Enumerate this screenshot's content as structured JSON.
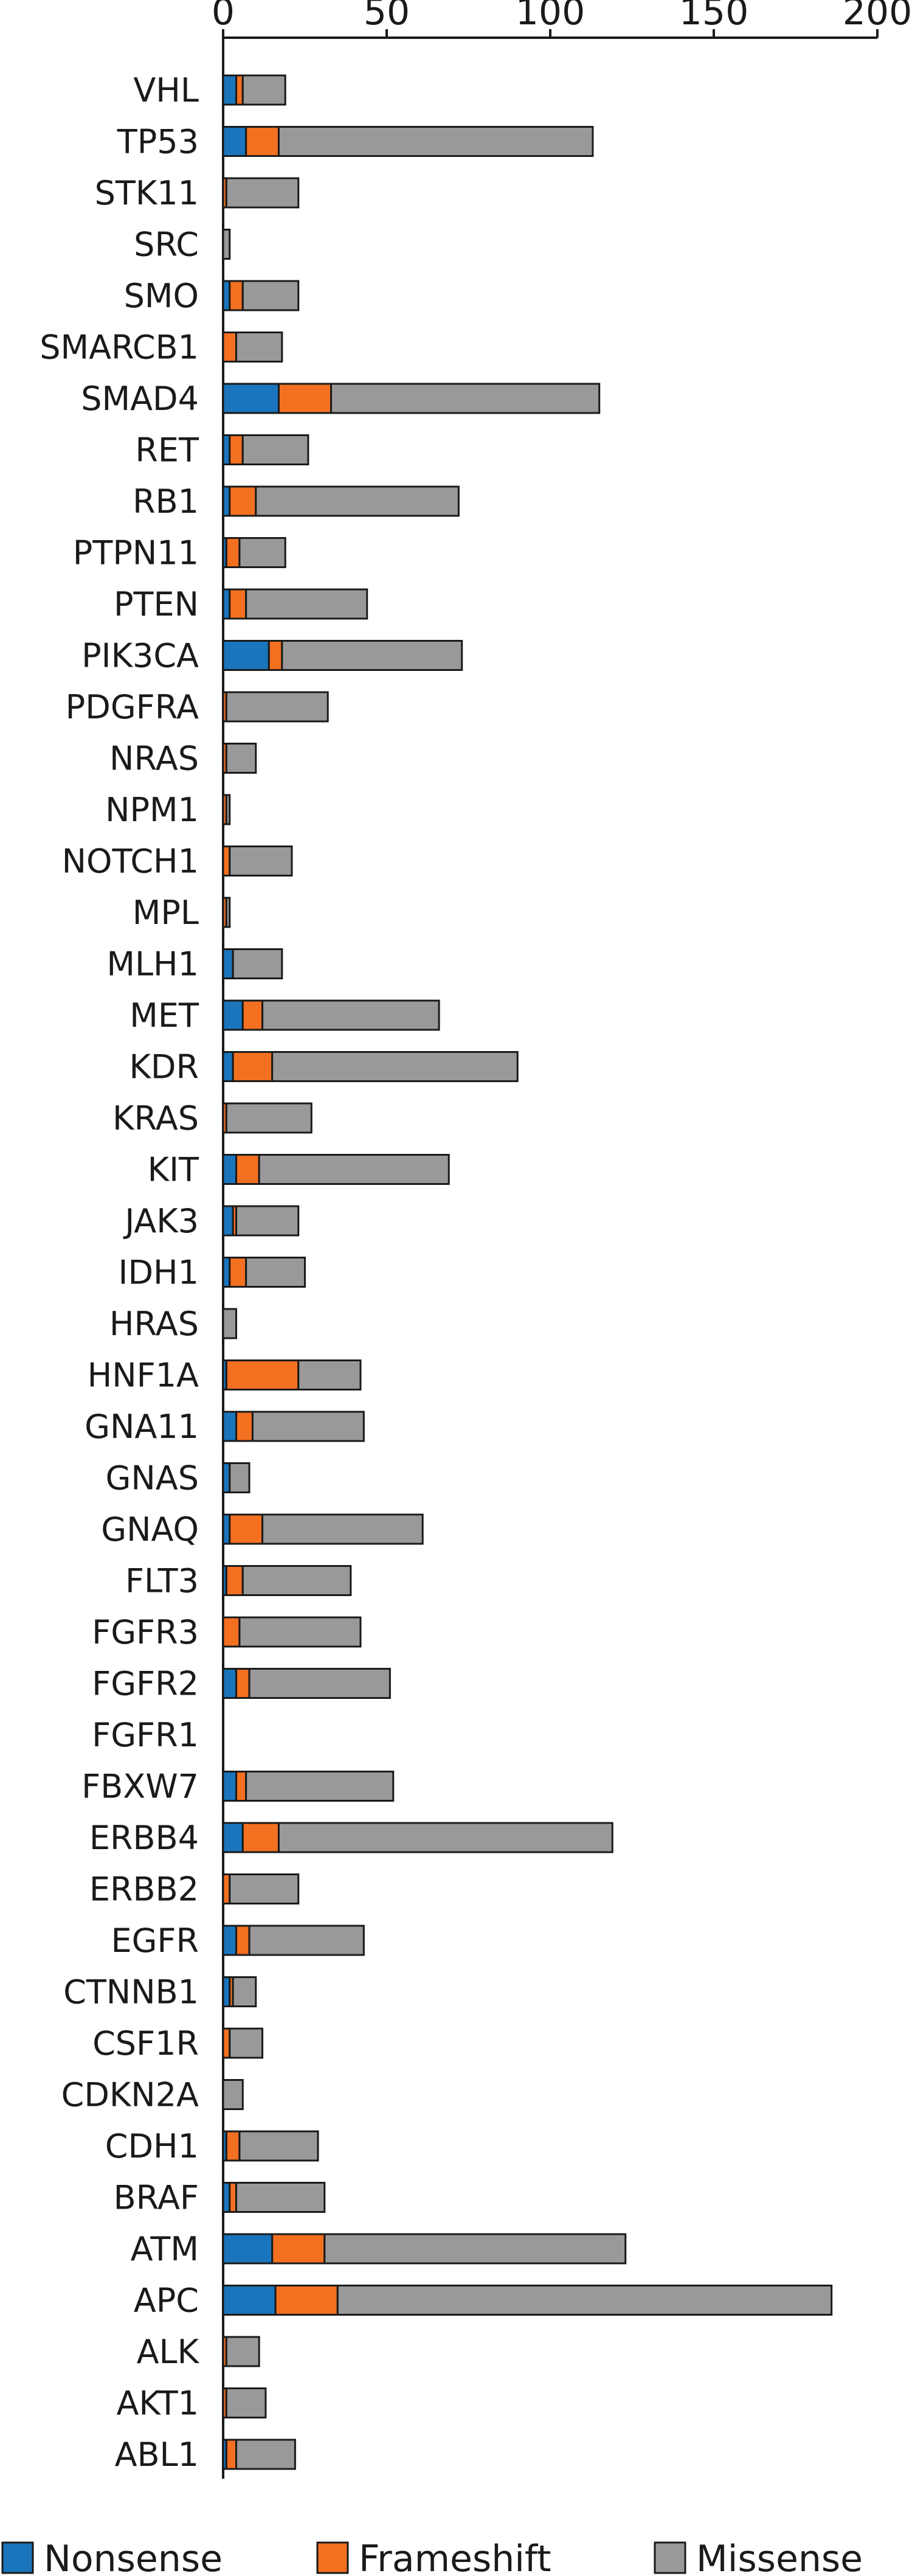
{
  "chart_data": {
    "type": "bar",
    "orientation": "horizontal",
    "stacked": true,
    "title": "",
    "xlabel": "",
    "ylabel": "",
    "xlim": [
      0,
      200
    ],
    "xticks": [
      0,
      50,
      100,
      150,
      200
    ],
    "x_axis_position": "top",
    "grid": false,
    "legend": "bottom",
    "categories": [
      "VHL",
      "TP53",
      "STK11",
      "SRC",
      "SMO",
      "SMARCB1",
      "SMAD4",
      "RET",
      "RB1",
      "PTPN11",
      "PTEN",
      "PIK3CA",
      "PDGFRA",
      "NRAS",
      "NPM1",
      "NOTCH1",
      "MPL",
      "MLH1",
      "MET",
      "KDR",
      "KRAS",
      "KIT",
      "JAK3",
      "IDH1",
      "HRAS",
      "HNF1A",
      "GNA11",
      "GNAS",
      "GNAQ",
      "FLT3",
      "FGFR3",
      "FGFR2",
      "FGFR1",
      "FBXW7",
      "ERBB4",
      "ERBB2",
      "EGFR",
      "CTNNB1",
      "CSF1R",
      "CDKN2A",
      "CDH1",
      "BRAF",
      "ATM",
      "APC",
      "ALK",
      "AKT1",
      "ABL1"
    ],
    "series": [
      {
        "name": "Nonsense",
        "color": "#1a75bc",
        "values": [
          4,
          7,
          0,
          0,
          2,
          0,
          17,
          2,
          2,
          1,
          2,
          14,
          0,
          0,
          0,
          0,
          0,
          3,
          6,
          3,
          0,
          4,
          3,
          2,
          0,
          1,
          4,
          2,
          2,
          1,
          0,
          4,
          0,
          4,
          6,
          0,
          4,
          2,
          0,
          0,
          1,
          2,
          15,
          16,
          0,
          0,
          1
        ]
      },
      {
        "name": "Frameshift",
        "color": "#f37021",
        "values": [
          2,
          10,
          1,
          0,
          4,
          4,
          16,
          4,
          8,
          4,
          5,
          4,
          1,
          1,
          1,
          2,
          1,
          0,
          6,
          12,
          1,
          7,
          1,
          5,
          0,
          22,
          5,
          0,
          10,
          5,
          5,
          4,
          0,
          3,
          11,
          2,
          4,
          1,
          2,
          0,
          4,
          2,
          16,
          19,
          1,
          1,
          3
        ]
      },
      {
        "name": "Missense",
        "color": "#999999",
        "values": [
          13,
          96,
          22,
          2,
          17,
          14,
          82,
          20,
          62,
          14,
          37,
          55,
          31,
          9,
          1,
          19,
          1,
          15,
          54,
          75,
          26,
          58,
          19,
          18,
          4,
          19,
          34,
          6,
          49,
          33,
          37,
          43,
          0,
          45,
          102,
          21,
          35,
          7,
          10,
          6,
          24,
          27,
          92,
          151,
          10,
          12,
          18
        ]
      }
    ]
  }
}
